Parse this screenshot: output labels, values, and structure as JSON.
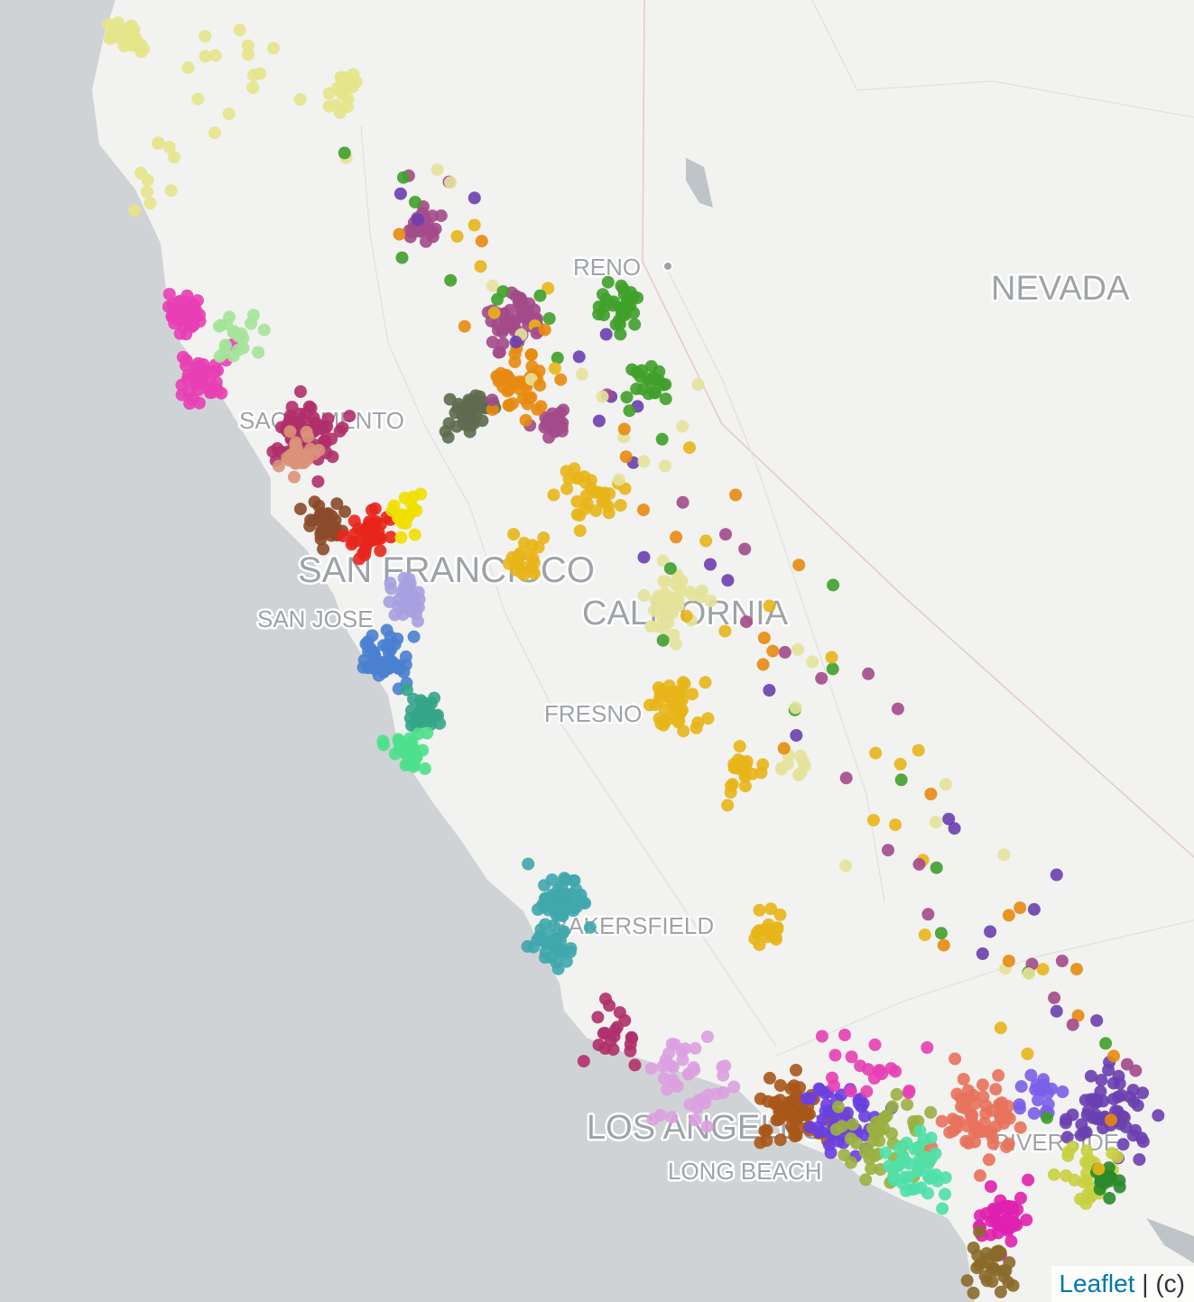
{
  "map": {
    "labels": [
      "RENO",
      "NEVADA",
      "SACRAMENTO",
      "SAN FRANCISCO",
      "SAN JOSE",
      "CALIFORNIA",
      "FRESNO",
      "BAKERSFIELD",
      "LOS ANGELES",
      "LONG BEACH",
      "RIVERSIDE"
    ],
    "attribution": {
      "link": "Leaflet",
      "text": "| (c)"
    }
  }
}
